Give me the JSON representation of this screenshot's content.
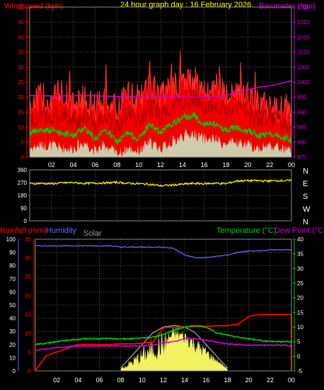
{
  "header": {
    "title": "24 hour graph day : 16 February 2026",
    "left_label": "Windspeed (kph)",
    "right_label": "Barometer (hpa)"
  },
  "colors": {
    "wind": "#ff0000",
    "gust": "#ff0000",
    "avg_wind": "#00cc00",
    "lull": "#c8f0c8",
    "barometer": "#cc00cc",
    "direction": "#ffff00",
    "rain": "#ff0000",
    "humidity": "#6666ff",
    "solar_fill": "#ffff66",
    "solar_max": "#aaaaaa",
    "temperature": "#00cc00",
    "dew_point": "#cc00cc",
    "grid": "#555555",
    "tick_text": "#ffffff"
  },
  "chart_data": [
    {
      "type": "line",
      "name": "wind",
      "x_ticks": [
        "02",
        "04",
        "06",
        "08",
        "10",
        "12",
        "14",
        "16",
        "18",
        "20",
        "22",
        "00"
      ],
      "y_left_ticks": [
        0,
        5,
        10,
        15,
        20,
        25,
        30,
        35,
        40,
        45,
        50
      ],
      "y_right_ticks": [
        975,
        980,
        985,
        990,
        995,
        1000,
        1005,
        1010,
        1015,
        1020,
        1025
      ],
      "ylim_left": [
        0,
        50
      ],
      "ylim_right": [
        975,
        1025
      ],
      "hours": [
        0,
        1,
        2,
        3,
        4,
        5,
        6,
        7,
        8,
        9,
        10,
        11,
        12,
        13,
        14,
        15,
        16,
        17,
        18,
        19,
        20,
        21,
        22,
        23,
        24
      ],
      "gust_kph": [
        18,
        20,
        19,
        22,
        17,
        20,
        16,
        20,
        15,
        22,
        18,
        24,
        20,
        23,
        25,
        26,
        22,
        24,
        21,
        22,
        20,
        17,
        18,
        16,
        15
      ],
      "wind_kph": [
        12,
        14,
        13,
        15,
        12,
        14,
        11,
        14,
        10,
        15,
        12,
        17,
        14,
        17,
        19,
        20,
        17,
        18,
        16,
        17,
        15,
        13,
        14,
        12,
        11
      ],
      "avg_kph": [
        8,
        9,
        9,
        8,
        7,
        10,
        6,
        9,
        5,
        8,
        6,
        11,
        8,
        11,
        13,
        14,
        11,
        11,
        9,
        10,
        9,
        7,
        8,
        7,
        6
      ],
      "lull_kph": [
        3,
        4,
        4,
        3,
        3,
        5,
        2,
        4,
        1,
        3,
        2,
        5,
        3,
        5,
        7,
        8,
        6,
        6,
        4,
        5,
        4,
        3,
        4,
        3,
        2
      ],
      "barometer_hpa": [
        995.5,
        995.6,
        995.4,
        995.4,
        995.5,
        995.6,
        995.5,
        995.3,
        995.2,
        995.1,
        995,
        995,
        995.1,
        995.2,
        995.1,
        995,
        995.1,
        995.2,
        995.5,
        996.6,
        997.5,
        998.3,
        998.8,
        999.5,
        1000.5
      ]
    },
    {
      "type": "line",
      "name": "wind_direction",
      "y_ticks": [
        0,
        90,
        180,
        270,
        360
      ],
      "y_right_labels": [
        "N",
        "W",
        "S",
        "E",
        "N"
      ],
      "ylim": [
        0,
        360
      ],
      "hours": [
        0,
        1,
        2,
        3,
        4,
        5,
        6,
        7,
        8,
        9,
        10,
        11,
        12,
        13,
        14,
        15,
        16,
        17,
        18,
        19,
        20,
        21,
        22,
        23,
        24
      ],
      "direction_deg": [
        262,
        265,
        262,
        268,
        270,
        264,
        266,
        268,
        272,
        265,
        262,
        258,
        248,
        252,
        258,
        264,
        262,
        266,
        262,
        282,
        284,
        283,
        282,
        285,
        283
      ]
    },
    {
      "type": "line",
      "name": "rain_humidity_temperature",
      "labels": {
        "rain": "Rainfall (mm)",
        "humidity": "Humidity",
        "solar": "Solar",
        "temperature": "Temperature (°C)",
        "dew_point": "Dew Point (°C)"
      },
      "humidity_ticks": [
        0,
        10,
        20,
        30,
        40,
        50,
        60,
        70,
        80,
        90,
        100
      ],
      "rain_ticks": [
        0,
        5,
        10,
        15,
        20,
        25,
        30,
        35
      ],
      "temp_ticks": [
        -5,
        0,
        5,
        10,
        15,
        20,
        25,
        30,
        35,
        40
      ],
      "hours": [
        0,
        1,
        2,
        3,
        4,
        5,
        6,
        7,
        8,
        9,
        10,
        11,
        12,
        13,
        14,
        15,
        16,
        17,
        18,
        19,
        20,
        21,
        22,
        23,
        24
      ],
      "humidity_pct": [
        95,
        95,
        95,
        95,
        95,
        95,
        95,
        95,
        94,
        94,
        94,
        94,
        94,
        93,
        88,
        86,
        86,
        87,
        88,
        90,
        91,
        91,
        92,
        92,
        92
      ],
      "rain_mm": [
        0,
        4,
        5,
        6,
        7,
        7,
        7,
        7,
        7.2,
        7.2,
        7.4,
        7.6,
        11.5,
        11.6,
        11.7,
        11.8,
        11.8,
        12,
        12,
        12.4,
        14.5,
        15,
        15,
        15,
        15
      ],
      "temperature_c": [
        4,
        4.5,
        5,
        5.5,
        5.8,
        6,
        6,
        6,
        6,
        6,
        6.2,
        6.5,
        7.5,
        9,
        10,
        10.5,
        10,
        8,
        7.3,
        6.5,
        6,
        5.5,
        5,
        5,
        5
      ],
      "dew_point_c": [
        2,
        2.5,
        3,
        3.3,
        3.5,
        3.5,
        3.5,
        3.5,
        3.5,
        3.5,
        3.5,
        3.8,
        4.5,
        5,
        6,
        6,
        5.5,
        4.8,
        4.2,
        4,
        3.8,
        3.8,
        3.8,
        3.8,
        3.5
      ],
      "solar_hours": [
        8,
        9,
        10,
        11,
        12,
        13,
        14,
        15,
        16,
        17,
        18
      ],
      "solar_max_c_scale": [
        -4,
        0,
        4,
        8,
        10,
        10.5,
        10,
        8,
        4,
        0,
        -4
      ],
      "solar_obs_c_scale": [
        -4.5,
        -4,
        -3,
        -2,
        -0.5,
        6,
        4,
        1,
        -1,
        -2.5,
        -4.5
      ]
    }
  ]
}
